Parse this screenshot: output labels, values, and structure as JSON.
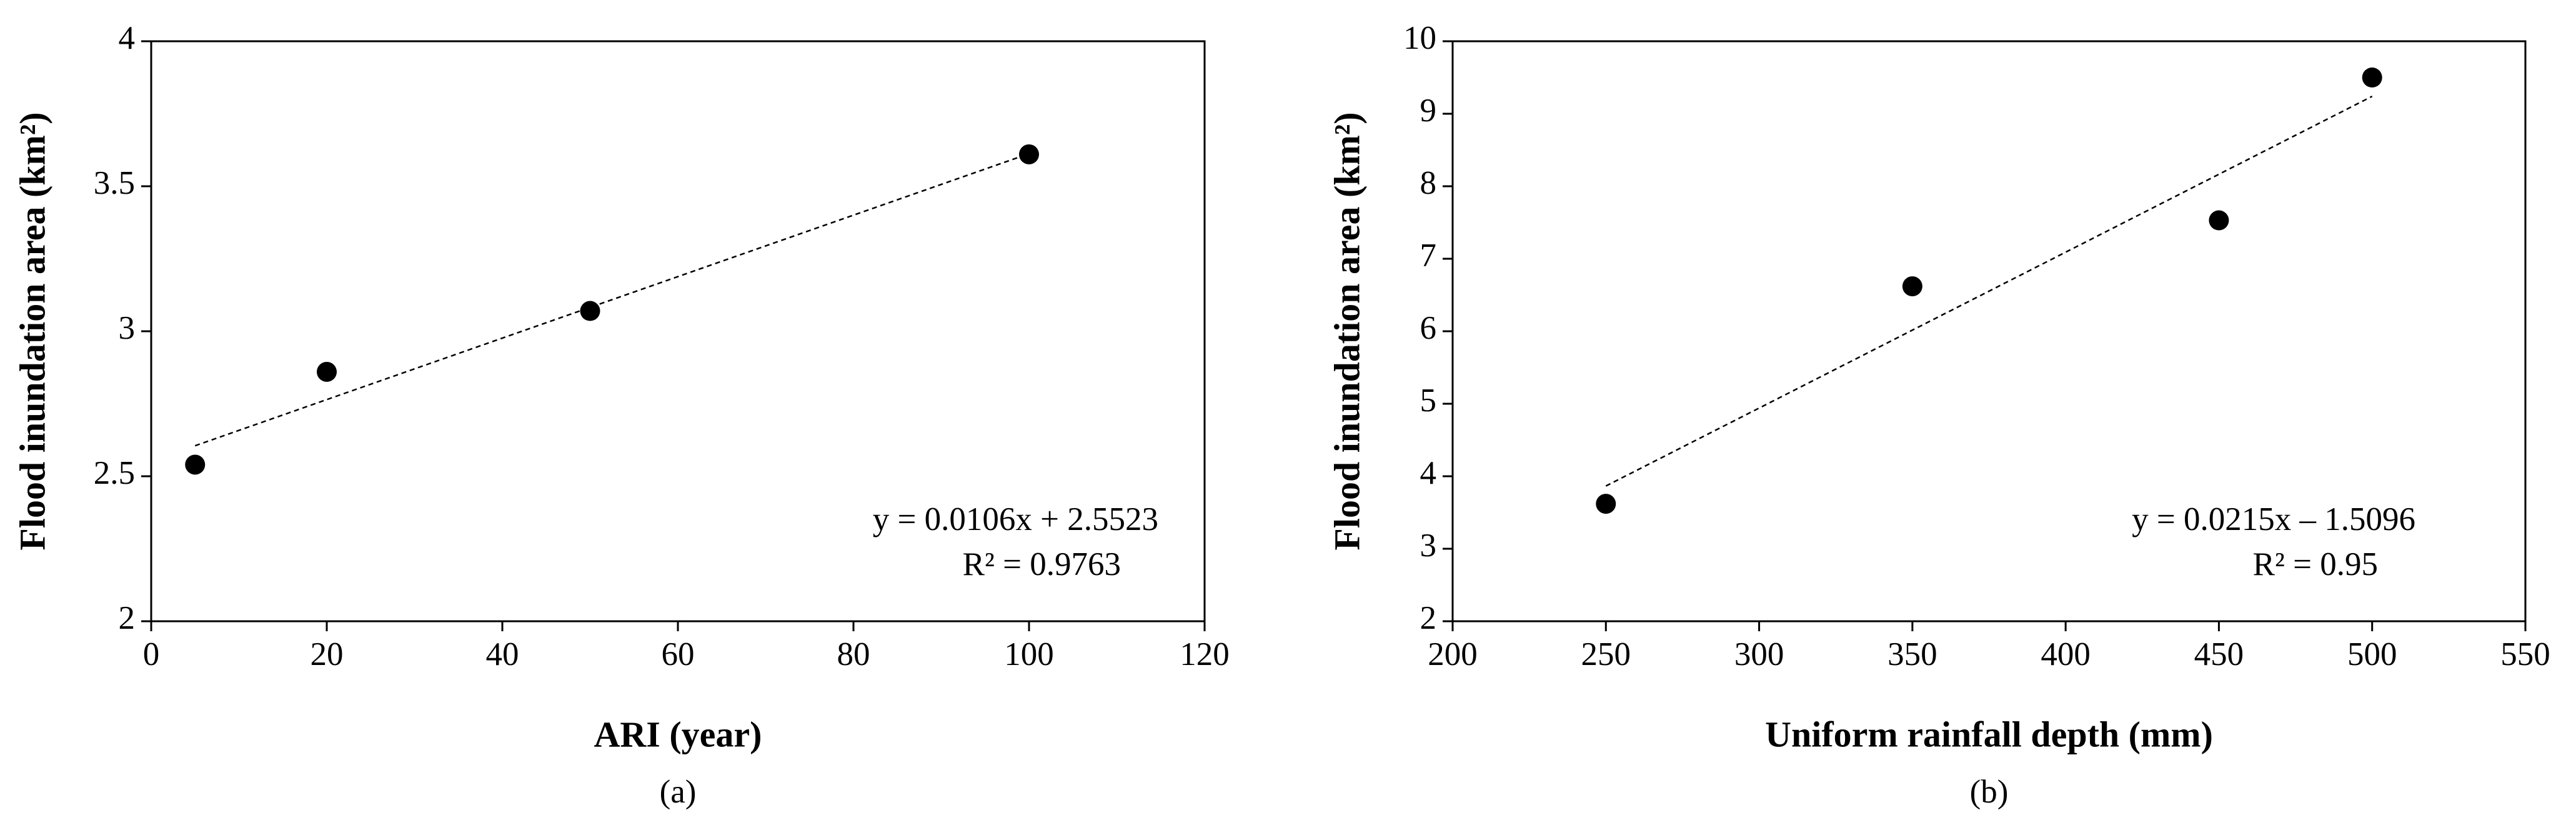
{
  "chart_data": [
    {
      "type": "scatter",
      "caption": "(a)",
      "x_label": "ARI (year)",
      "y_label": "Flood inundation area (km²)",
      "x": [
        5,
        20,
        50,
        100
      ],
      "values": [
        2.54,
        2.86,
        3.07,
        3.61
      ],
      "color": "#000000",
      "xlim": [
        0,
        120
      ],
      "xticks": [
        0,
        20,
        40,
        60,
        80,
        100,
        120
      ],
      "ylim": [
        2,
        4
      ],
      "yticks": [
        2,
        2.5,
        3,
        3.5,
        4
      ],
      "trendline": {
        "slope": 0.0106,
        "intercept": 2.5523
      },
      "annotations": [
        "y = 0.0106x + 2.5523",
        "R² = 0.9763"
      ]
    },
    {
      "type": "scatter",
      "caption": "(b)",
      "x_label": "Uniform rainfall depth (mm)",
      "y_label": "Flood inundation area (km²)",
      "x": [
        250,
        350,
        450,
        500
      ],
      "values": [
        3.62,
        6.62,
        7.53,
        9.5
      ],
      "color": "#000000",
      "xlim": [
        200,
        550
      ],
      "xticks": [
        200,
        250,
        300,
        350,
        400,
        450,
        500,
        550
      ],
      "ylim": [
        2,
        10
      ],
      "yticks": [
        2,
        3,
        4,
        5,
        6,
        7,
        8,
        9,
        10
      ],
      "trendline": {
        "slope": 0.0215,
        "intercept": -1.5096
      },
      "annotations": [
        "y = 0.0215x – 1.5096",
        "R² = 0.95"
      ]
    }
  ]
}
